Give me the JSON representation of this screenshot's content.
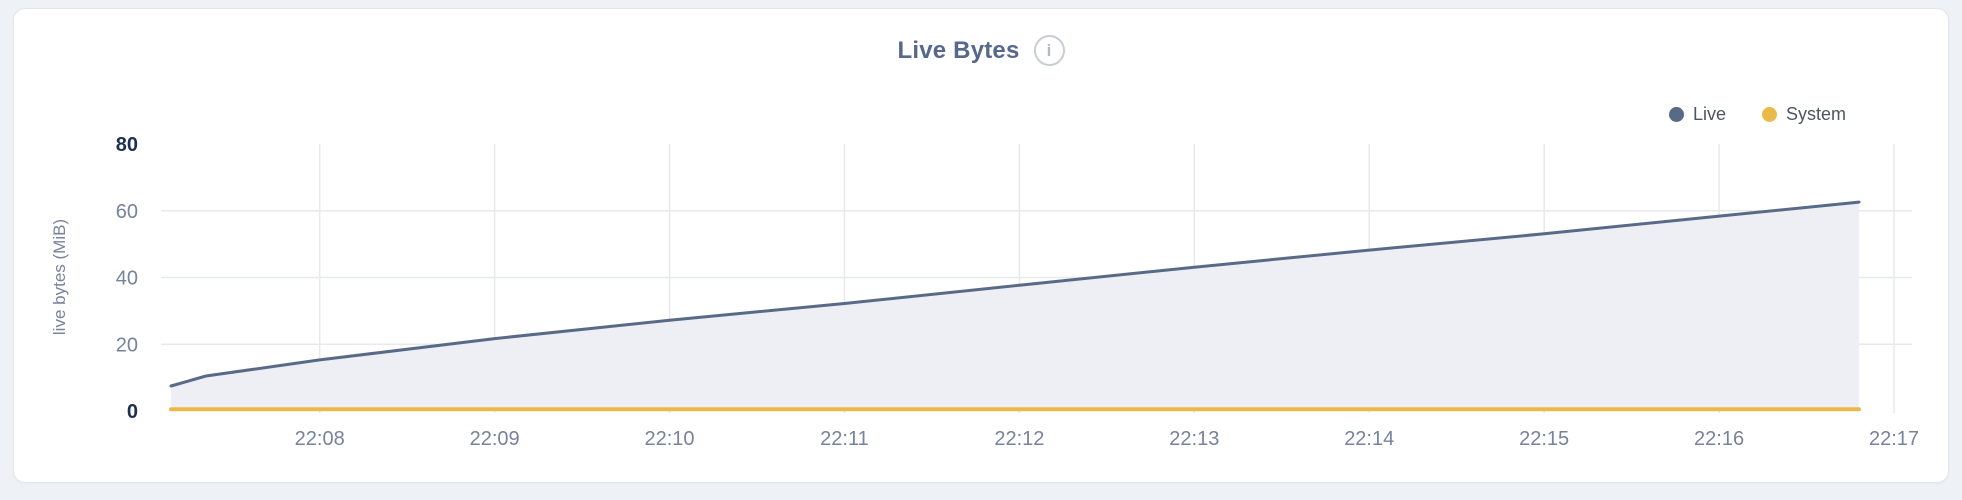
{
  "header": {
    "info_glyph": "i"
  },
  "colors": {
    "page_bg": "#eef1f6",
    "card_bg": "#ffffff",
    "card_border": "#e3e6ea",
    "title": "#56688b",
    "tick_label": "#76839c",
    "tick_label_strong": "#1d3054",
    "legend_text": "#4e5560",
    "info_icon": "#c9cdd5",
    "live_series": "#596a89",
    "live_fill": "#edeff4",
    "system_series": "#e9ba49",
    "gridline": "#e7e9ec"
  },
  "chart_data": {
    "type": "area",
    "title": "Live Bytes",
    "ylabel": "live bytes (MiB)",
    "xlabel": "",
    "x_unit": "minutes after 22:00 (labels shown as HH:MM)",
    "y_unit": "MiB",
    "xlim": [
      7.15,
      17.04
    ],
    "ylim": [
      0,
      80
    ],
    "x_ticks": [
      {
        "value": 8,
        "label": "22:08"
      },
      {
        "value": 9,
        "label": "22:09"
      },
      {
        "value": 10,
        "label": "22:10"
      },
      {
        "value": 11,
        "label": "22:11"
      },
      {
        "value": 12,
        "label": "22:12"
      },
      {
        "value": 13,
        "label": "22:13"
      },
      {
        "value": 14,
        "label": "22:14"
      },
      {
        "value": 15,
        "label": "22:15"
      },
      {
        "value": 16,
        "label": "22:16"
      },
      {
        "value": 17,
        "label": "22:17"
      }
    ],
    "y_ticks": [
      0,
      20,
      40,
      60,
      80
    ],
    "emphasized_y_ticks": [
      0,
      80
    ],
    "grid": {
      "vertical": true,
      "horizontal": true,
      "color": "#e7e9ec"
    },
    "legend_position": "top-right",
    "series": [
      {
        "name": "Live",
        "color": "#596a89",
        "fill": "#edeff4",
        "line_width": 3,
        "points": [
          [
            7.15,
            7.5
          ],
          [
            7.35,
            10.5
          ],
          [
            8,
            15.3
          ],
          [
            9,
            21.7
          ],
          [
            10,
            27.2
          ],
          [
            11,
            32.2
          ],
          [
            12,
            37.7
          ],
          [
            13,
            43.1
          ],
          [
            14,
            48.2
          ],
          [
            15,
            53.1
          ],
          [
            16,
            58.4
          ],
          [
            16.8,
            62.6
          ]
        ]
      },
      {
        "name": "System",
        "color": "#e9ba49",
        "fill": null,
        "line_width": 4,
        "points": [
          [
            7.15,
            0.5
          ],
          [
            16.8,
            0.5
          ]
        ]
      }
    ]
  }
}
